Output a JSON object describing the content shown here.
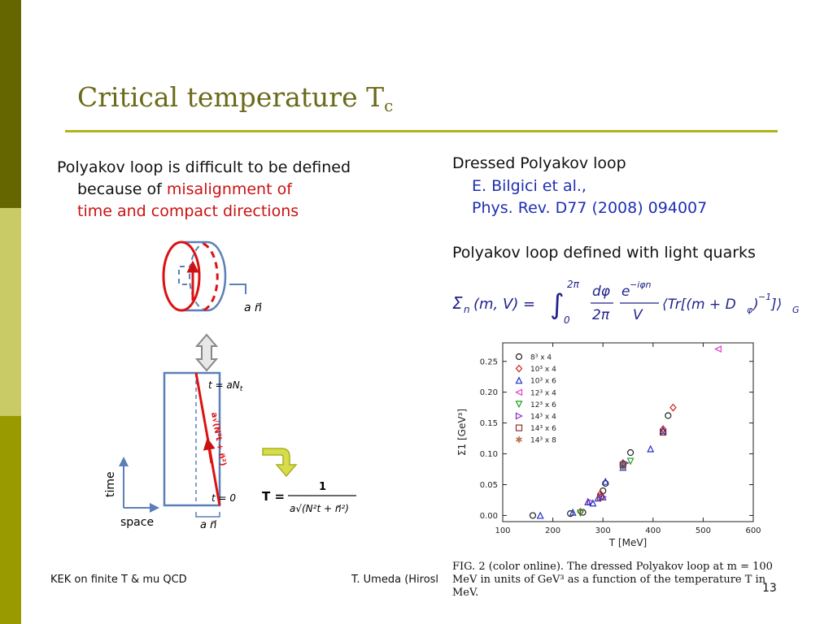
{
  "slide": {
    "title": "Critical temperature T",
    "title_sub": "c",
    "left_text": {
      "line1": "Polyakov loop is difficult to be defined",
      "line2_prefix": "because of ",
      "line2_highlight": "misalignment of",
      "line3_highlight": "time and compact directions"
    },
    "right_text": {
      "heading": "Dressed Polyakov loop",
      "ref_authors": "E. Bilgici et al.,",
      "ref_journal": "Phys. Rev. D77 (2008) 094007",
      "light_quarks": "Polyakov loop defined with light quarks"
    },
    "formula": {
      "lhs": "Σ",
      "lhs_sub": "n",
      "lhs_args": "(m, V) =",
      "integral": "∫",
      "upper": "2π",
      "lower": "0",
      "frac1_num": "dφ",
      "frac1_den": "2π",
      "frac2_num": "e",
      "frac2_exp": "−iφn",
      "frac2_den": "V",
      "tail": "⟨Tr[(m + D",
      "tail_sub": "φ",
      "tail2": ")",
      "tail_exp": "−1",
      "tail3": "]⟩",
      "tail_sub2": "G"
    },
    "diagram": {
      "label_an_top": "a n⃗",
      "label_t_top": "t = aN",
      "label_t_top_sub": "t",
      "label_t0": "t = 0",
      "label_an_bottom": "a n⃗",
      "diag_label": "a√(N²t + n⃗²)",
      "axis_time": "time",
      "axis_space": "space",
      "T_lhs": "T =",
      "T_num": "1",
      "T_den": "a√(N²t + n⃗²)",
      "arrow_color": "#cc1111",
      "hook_arrow_color": "#c8d23a"
    },
    "caption": "FIG. 2 (color online). The dressed Polyakov loop at m = 100 MeV in units of GeV³ as a function of the temperature T in MeV.",
    "footer_left": "KEK on finite T & mu QCD",
    "footer_center": "T. Umeda (Hirosl",
    "page_number": "13"
  },
  "chart_data": {
    "type": "scatter",
    "xlabel": "T [MeV]",
    "ylabel": "Σ1 [GeV³]",
    "xlim": [
      100,
      600
    ],
    "ylim": [
      -0.01,
      0.28
    ],
    "x_ticks": [
      "100",
      "200",
      "300",
      "400",
      "500",
      "600"
    ],
    "y_ticks": [
      "0.00",
      "0.05",
      "0.10",
      "0.15",
      "0.20",
      "0.25"
    ],
    "legend_position": "top-left",
    "series": [
      {
        "name": "8³ x 4",
        "marker": "circle",
        "color": "#222222",
        "x": [
          160,
          235,
          260,
          300,
          305,
          340,
          355,
          420,
          430
        ],
        "y": [
          0.0,
          0.003,
          0.005,
          0.04,
          0.052,
          0.083,
          0.102,
          0.135,
          0.162
        ]
      },
      {
        "name": "10³ x 4",
        "marker": "diamond",
        "color": "#d42020",
        "x": [
          255,
          295,
          340,
          420,
          440
        ],
        "y": [
          0.006,
          0.035,
          0.085,
          0.14,
          0.175
        ]
      },
      {
        "name": "10³ x 6",
        "marker": "triangle-up",
        "color": "#2030c8",
        "x": [
          175,
          240,
          270,
          280,
          290,
          300,
          305,
          340,
          395,
          420
        ],
        "y": [
          0.0,
          0.005,
          0.022,
          0.02,
          0.028,
          0.03,
          0.055,
          0.078,
          0.108,
          0.138
        ]
      },
      {
        "name": "12³ x 4",
        "marker": "triangle-left",
        "color": "#e040c8",
        "x": [
          530
        ],
        "y": [
          0.27
        ]
      },
      {
        "name": "12³ x 6",
        "marker": "triangle-down",
        "color": "#20a020",
        "x": [
          255,
          340,
          355
        ],
        "y": [
          0.004,
          0.08,
          0.088
        ]
      },
      {
        "name": "14³ x 4",
        "marker": "triangle-right",
        "color": "#8030c0",
        "x": [
          275,
          300,
          345
        ],
        "y": [
          0.022,
          0.03,
          0.085
        ]
      },
      {
        "name": "14³ x 6",
        "marker": "square",
        "color": "#903030",
        "x": [
          295,
          340,
          420
        ],
        "y": [
          0.03,
          0.082,
          0.135
        ]
      },
      {
        "name": "14³ x 8",
        "marker": "star",
        "color": "#c07050",
        "x": [],
        "y": []
      }
    ]
  }
}
